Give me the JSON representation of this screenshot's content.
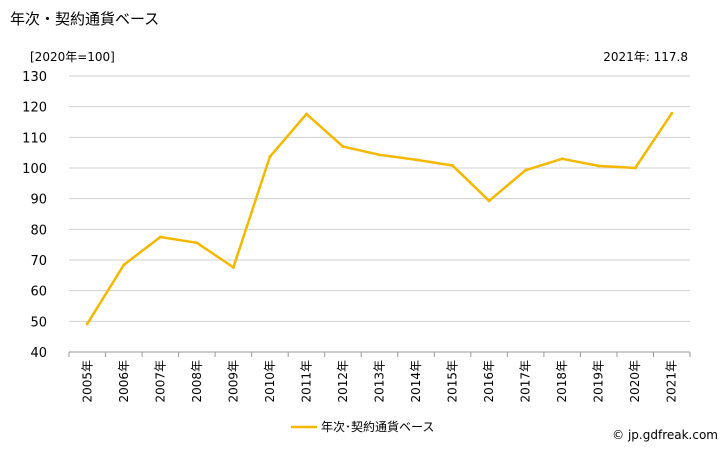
{
  "header": {
    "title": "年次・契約通貨ベース",
    "unit": "[2020年=100]",
    "latest": "2021年: 117.8"
  },
  "footer": {
    "credit": "© jp.gdfreak.com"
  },
  "colors": {
    "line": "#f5b800",
    "grid": "#d0d0d0"
  },
  "chart_data": {
    "type": "line",
    "title": "年次・契約通貨ベース",
    "categories": [
      "2005年",
      "2006年",
      "2007年",
      "2008年",
      "2009年",
      "2010年",
      "2011年",
      "2012年",
      "2013年",
      "2014年",
      "2015年",
      "2016年",
      "2017年",
      "2018年",
      "2019年",
      "2020年",
      "2021年"
    ],
    "series": [
      {
        "name": "年次･契約通貨ベース",
        "values": [
          49.2,
          68.4,
          77.5,
          75.6,
          67.6,
          103.7,
          117.6,
          107.0,
          104.3,
          102.7,
          100.8,
          89.3,
          99.3,
          103.0,
          100.7,
          100.0,
          117.8
        ]
      }
    ],
    "ylim": [
      40,
      130
    ],
    "yticks": [
      40,
      50,
      60,
      70,
      80,
      90,
      100,
      110,
      120,
      130
    ],
    "grid": true,
    "legend_position": "bottom-center"
  }
}
